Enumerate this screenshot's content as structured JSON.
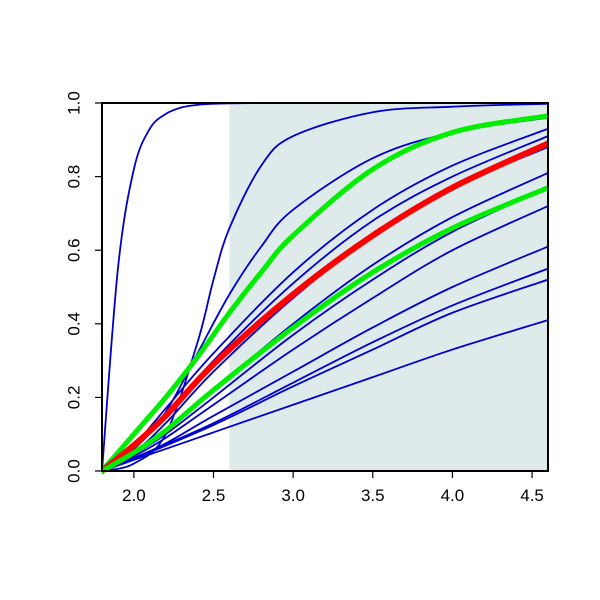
{
  "chart_data": {
    "type": "line",
    "title": "",
    "xlabel": "",
    "ylabel": "",
    "xlim": [
      1.8,
      4.6
    ],
    "ylim": [
      0.0,
      1.0
    ],
    "x_ticks": [
      "2.0",
      "2.5",
      "3.0",
      "3.5",
      "4.0",
      "4.5"
    ],
    "y_ticks": [
      "0.0",
      "0.2",
      "0.4",
      "0.6",
      "0.8",
      "1.0"
    ],
    "shaded_region": {
      "x_from": 2.6,
      "x_to": 4.6,
      "color": "#dfeaea"
    },
    "x_origin": 1.8,
    "series": [
      {
        "color": "#0000cc",
        "width": 1.8,
        "x": [
          1.8,
          1.9,
          2.0,
          2.1,
          2.2,
          2.3,
          2.4,
          2.5,
          2.6,
          2.8,
          3.0,
          3.5,
          4.0,
          4.5,
          4.6
        ],
        "y": [
          0.0,
          0.55,
          0.82,
          0.93,
          0.97,
          0.988,
          0.995,
          0.998,
          0.999,
          1.0,
          1.0,
          1.0,
          1.0,
          1.0,
          1.0
        ]
      },
      {
        "color": "#0000cc",
        "width": 1.8,
        "x": [
          1.8,
          2.0,
          2.2,
          2.4,
          2.5,
          2.6,
          2.8,
          3.0,
          3.5,
          4.0,
          4.6
        ],
        "y": [
          0.0,
          0.02,
          0.1,
          0.35,
          0.52,
          0.66,
          0.83,
          0.91,
          0.975,
          0.99,
          0.998
        ]
      },
      {
        "color": "#0000cc",
        "width": 1.8,
        "x": [
          1.8,
          2.0,
          2.2,
          2.4,
          2.6,
          2.8,
          3.0,
          3.5,
          4.0,
          4.6
        ],
        "y": [
          0.0,
          0.06,
          0.16,
          0.32,
          0.48,
          0.61,
          0.71,
          0.85,
          0.92,
          0.96
        ]
      },
      {
        "color": "#0000cc",
        "width": 1.8,
        "x": [
          1.8,
          2.0,
          2.2,
          2.5,
          3.0,
          3.5,
          4.0,
          4.6
        ],
        "y": [
          0.0,
          0.07,
          0.17,
          0.32,
          0.54,
          0.71,
          0.83,
          0.93
        ]
      },
      {
        "color": "#0000cc",
        "width": 1.8,
        "x": [
          1.8,
          2.0,
          2.2,
          2.5,
          3.0,
          3.5,
          4.0,
          4.6
        ],
        "y": [
          0.0,
          0.06,
          0.15,
          0.3,
          0.51,
          0.68,
          0.8,
          0.91
        ]
      },
      {
        "color": "#0000cc",
        "width": 1.8,
        "x": [
          1.8,
          2.0,
          2.2,
          2.5,
          3.0,
          3.5,
          4.0,
          4.6
        ],
        "y": [
          0.0,
          0.05,
          0.13,
          0.27,
          0.47,
          0.64,
          0.77,
          0.88
        ]
      },
      {
        "color": "#0000cc",
        "width": 1.8,
        "x": [
          1.8,
          2.0,
          2.2,
          2.5,
          3.0,
          3.5,
          4.0,
          4.6
        ],
        "y": [
          0.0,
          0.05,
          0.11,
          0.22,
          0.4,
          0.56,
          0.69,
          0.81
        ]
      },
      {
        "color": "#0000cc",
        "width": 1.8,
        "x": [
          1.8,
          2.0,
          2.2,
          2.5,
          3.0,
          3.5,
          4.0,
          4.6
        ],
        "y": [
          0.0,
          0.045,
          0.1,
          0.2,
          0.37,
          0.52,
          0.65,
          0.77
        ]
      },
      {
        "color": "#0000cc",
        "width": 1.8,
        "x": [
          1.8,
          2.0,
          2.2,
          2.5,
          3.0,
          3.5,
          4.0,
          4.6
        ],
        "y": [
          0.0,
          0.04,
          0.09,
          0.18,
          0.33,
          0.47,
          0.6,
          0.72
        ]
      },
      {
        "color": "#0000cc",
        "width": 1.8,
        "x": [
          1.8,
          2.0,
          2.2,
          2.5,
          3.0,
          3.5,
          4.0,
          4.6
        ],
        "y": [
          0.0,
          0.035,
          0.075,
          0.15,
          0.27,
          0.39,
          0.5,
          0.61
        ]
      },
      {
        "color": "#0000cc",
        "width": 1.8,
        "x": [
          1.8,
          2.0,
          2.5,
          3.0,
          3.5,
          4.0,
          4.6
        ],
        "y": [
          0.0,
          0.035,
          0.13,
          0.24,
          0.35,
          0.45,
          0.55
        ]
      },
      {
        "color": "#0000cc",
        "width": 1.8,
        "x": [
          1.8,
          2.0,
          2.5,
          3.0,
          3.5,
          4.0,
          4.6
        ],
        "y": [
          0.0,
          0.033,
          0.125,
          0.23,
          0.33,
          0.43,
          0.52
        ]
      },
      {
        "color": "#0000cc",
        "width": 1.8,
        "x": [
          1.8,
          2.0,
          2.5,
          3.0,
          3.5,
          4.0,
          4.6
        ],
        "y": [
          0.0,
          0.03,
          0.105,
          0.18,
          0.255,
          0.33,
          0.41
        ]
      },
      {
        "color": "#00ee00",
        "width": 5,
        "x": [
          1.8,
          2.0,
          2.2,
          2.4,
          2.6,
          2.8,
          3.0,
          3.5,
          4.0,
          4.6
        ],
        "y": [
          0.0,
          0.1,
          0.2,
          0.31,
          0.43,
          0.54,
          0.64,
          0.82,
          0.92,
          0.965
        ]
      },
      {
        "color": "#ff0000",
        "width": 6,
        "x": [
          1.8,
          2.0,
          2.2,
          2.5,
          3.0,
          3.5,
          4.0,
          4.6
        ],
        "y": [
          0.0,
          0.07,
          0.15,
          0.29,
          0.48,
          0.64,
          0.77,
          0.89
        ]
      },
      {
        "color": "#00ee00",
        "width": 5,
        "x": [
          1.8,
          2.0,
          2.2,
          2.5,
          3.0,
          3.5,
          4.0,
          4.6
        ],
        "y": [
          0.0,
          0.05,
          0.11,
          0.22,
          0.39,
          0.54,
          0.66,
          0.77
        ]
      }
    ]
  }
}
